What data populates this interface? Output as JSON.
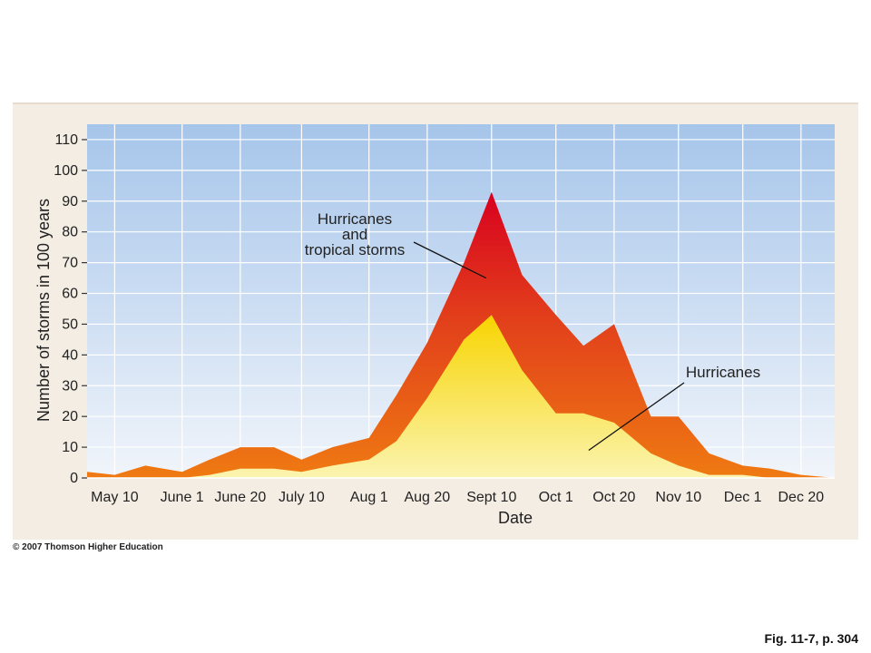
{
  "chart_data": {
    "type": "area",
    "title": "",
    "xlabel": "Date",
    "ylabel": "Number of storms in 100 years",
    "ylim": [
      0,
      115
    ],
    "yticks": [
      0,
      10,
      20,
      30,
      40,
      50,
      60,
      70,
      80,
      90,
      100,
      110
    ],
    "xtick_labels": [
      "May 10",
      "June 1",
      "June 20",
      "July 10",
      "Aug 1",
      "Aug 20",
      "Sept 10",
      "Oct 1",
      "Oct 20",
      "Nov 10",
      "Dec 1",
      "Dec 20"
    ],
    "xtick_dates": [
      "May 10",
      "June 1",
      "June 20",
      "July 10",
      "Aug 1",
      "Aug 20",
      "Sept 10",
      "Oct 1",
      "Oct 20",
      "Nov 10",
      "Dec 1",
      "Dec 20"
    ],
    "grid": true,
    "x": [
      "May 1",
      "May 10",
      "May 20",
      "June 1",
      "June 10",
      "June 20",
      "July 1",
      "July 10",
      "July 20",
      "Aug 1",
      "Aug 10",
      "Aug 20",
      "Sept 1",
      "Sept 10",
      "Sept 20",
      "Oct 1",
      "Oct 10",
      "Oct 20",
      "Nov 1",
      "Nov 10",
      "Nov 20",
      "Dec 1",
      "Dec 10",
      "Dec 20",
      "Dec 31"
    ],
    "series": [
      {
        "name": "Hurricanes and tropical storms",
        "color": "#e0400f",
        "values": [
          2,
          1,
          4,
          2,
          6,
          10,
          10,
          6,
          10,
          13,
          27,
          44,
          70,
          93,
          66,
          53,
          43,
          50,
          20,
          20,
          8,
          4,
          3,
          1,
          0
        ]
      },
      {
        "name": "Hurricanes",
        "color": "#f7df2a",
        "values": [
          0,
          0,
          0,
          0,
          1,
          3,
          3,
          2,
          4,
          6,
          12,
          26,
          45,
          53,
          35,
          21,
          21,
          18,
          8,
          4,
          1,
          1,
          0,
          0,
          0
        ]
      }
    ],
    "annotations": [
      {
        "lines": [
          "Hurricanes",
          "and",
          "tropical storms"
        ],
        "series": "Hurricanes and tropical storms"
      },
      {
        "lines": [
          "Hurricanes"
        ],
        "series": "Hurricanes"
      }
    ]
  },
  "footer": {
    "copyright": "© 2007 Thomson Higher Education",
    "figure_ref": "Fig. 11-7, p. 304"
  }
}
